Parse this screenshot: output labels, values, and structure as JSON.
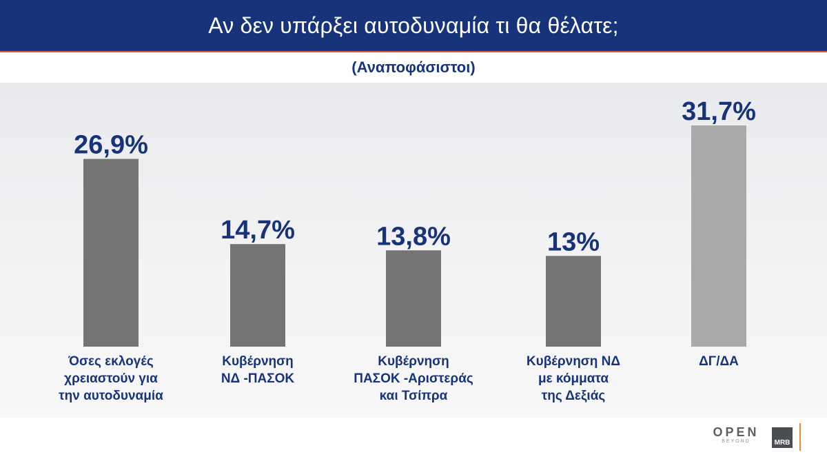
{
  "header": {
    "title": "Αν δεν υπάρξει αυτοδυναμία τι θα θέλατε;",
    "subtitle": "(Αναποφάσιστοι)"
  },
  "chart_data": {
    "type": "bar",
    "title": "Αν δεν υπάρξει αυτοδυναμία τι θα θέλατε;",
    "subtitle": "(Αναποφάσιστοι)",
    "categories": [
      [
        "Όσες εκλογές",
        "χρειαστούν για",
        "την αυτοδυναμία"
      ],
      [
        "Κυβέρνηση",
        "ΝΔ -ΠΑΣΟΚ"
      ],
      [
        "Κυβέρνηση",
        "ΠΑΣΟΚ -Αριστεράς",
        "και Τσίπρα"
      ],
      [
        "Κυβέρνηση ΝΔ",
        "με κόμματα",
        "της Δεξιάς"
      ],
      [
        "ΔΓ/ΔΑ"
      ]
    ],
    "values": [
      26.9,
      14.7,
      13.8,
      13,
      31.7
    ],
    "value_labels": [
      "26,9%",
      "14,7%",
      "13,8%",
      "13%",
      "31,7%"
    ],
    "bar_colors": [
      "#747474",
      "#747474",
      "#747474",
      "#747474",
      "#a9a9a9"
    ],
    "value_label_color": "#17347a",
    "category_label_color": "#17347a",
    "ylim": [
      0,
      31.7
    ],
    "grid": false,
    "legend": "none"
  },
  "colors": {
    "header_bg": "#17347a",
    "header_border": "#d9534f",
    "accent_orange": "#e8892f"
  },
  "footer": {
    "logo_open": "OPEN",
    "logo_open_sub": "BEYOND",
    "logo_mrb": "MRB"
  }
}
